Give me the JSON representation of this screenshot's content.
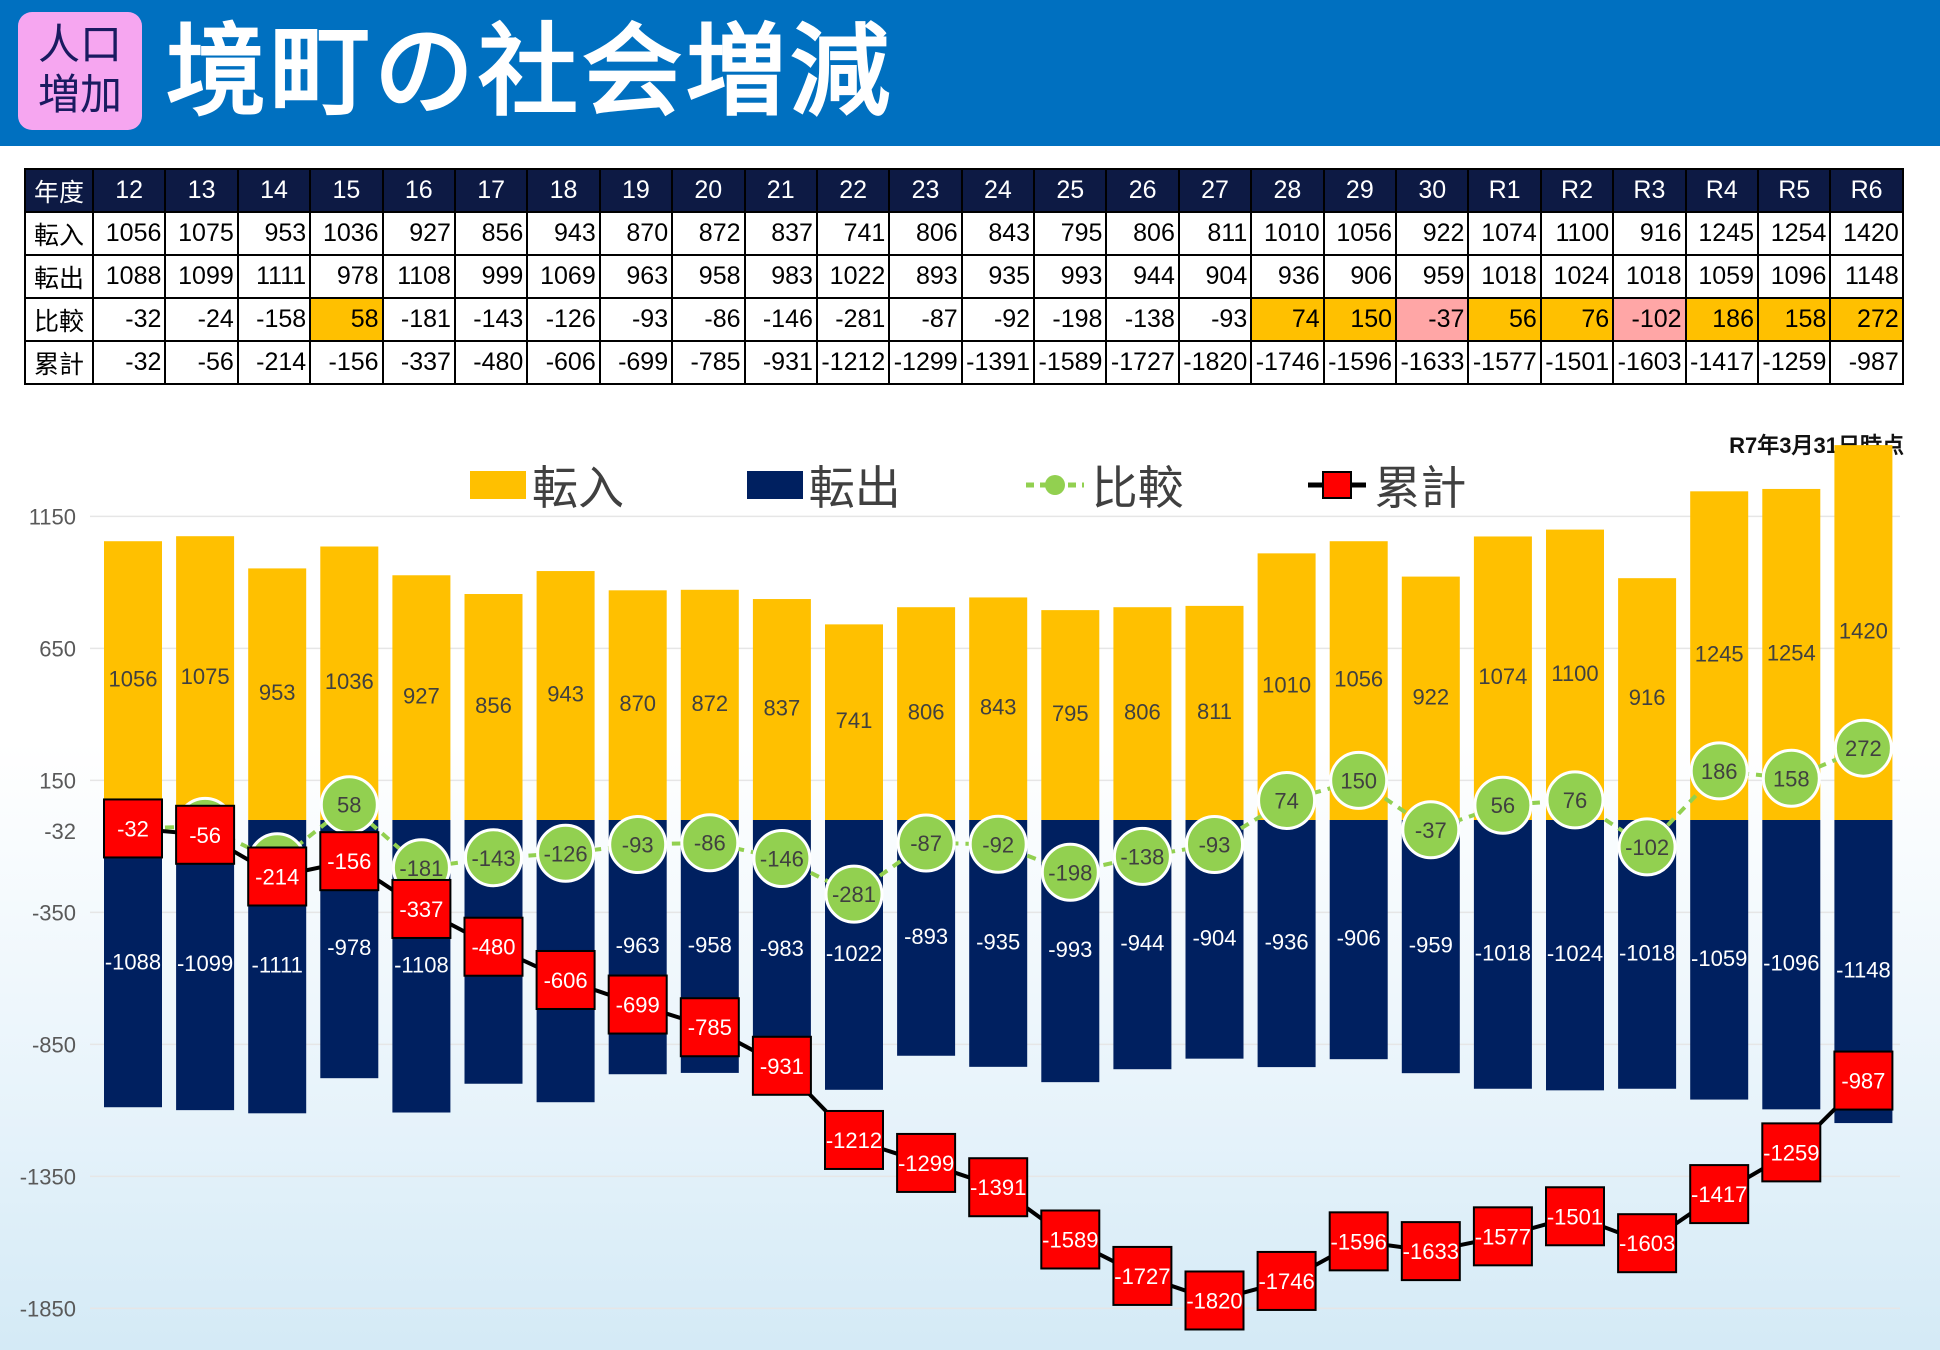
{
  "header": {
    "badge_line1": "人口",
    "badge_line2": "増加",
    "title": "境町の社会増減"
  },
  "table": {
    "row_labels": [
      "年度",
      "転入",
      "転出",
      "比較",
      "累計"
    ],
    "years": [
      "12",
      "13",
      "14",
      "15",
      "16",
      "17",
      "18",
      "19",
      "20",
      "21",
      "22",
      "23",
      "24",
      "25",
      "26",
      "27",
      "28",
      "29",
      "30",
      "R1",
      "R2",
      "R3",
      "R4",
      "R5",
      "R6"
    ],
    "transfer_in": [
      "1056",
      "1075",
      "953",
      "1036",
      "927",
      "856",
      "943",
      "870",
      "872",
      "837",
      "741",
      "806",
      "843",
      "795",
      "806",
      "811",
      "1010",
      "1056",
      "922",
      "1074",
      "1100",
      "916",
      "1245",
      "1254",
      "1420"
    ],
    "transfer_out": [
      "1088",
      "1099",
      "1111",
      "978",
      "1108",
      "999",
      "1069",
      "963",
      "958",
      "983",
      "1022",
      "893",
      "935",
      "993",
      "944",
      "904",
      "936",
      "906",
      "959",
      "1018",
      "1024",
      "1018",
      "1059",
      "1096",
      "1148"
    ],
    "comparison": [
      "-32",
      "-24",
      "-158",
      "58",
      "-181",
      "-143",
      "-126",
      "-93",
      "-86",
      "-146",
      "-281",
      "-87",
      "-92",
      "-198",
      "-138",
      "-93",
      "74",
      "150",
      "-37",
      "56",
      "76",
      "-102",
      "186",
      "158",
      "272"
    ],
    "cumulative": [
      "-32",
      "-56",
      "-214",
      "-156",
      "-337",
      "-480",
      "-606",
      "-699",
      "-785",
      "-931",
      "-1212",
      "-1299",
      "-1391",
      "-1589",
      "-1727",
      "-1820",
      "-1746",
      "-1596",
      "-1633",
      "-1577",
      "-1501",
      "-1603",
      "-1417",
      "-1259",
      "-987"
    ],
    "highlight_yellow_color": "#ffc000",
    "highlight_pink_color": "#ffa6a6",
    "header_row_color": "#0d1a44"
  },
  "note": "R7年3月31日時点",
  "legend": {
    "in": "転入",
    "out": "転出",
    "comparison": "比較",
    "cumulative": "累計"
  },
  "chart_data": {
    "type": "bar",
    "categories": [
      "12",
      "13",
      "14",
      "15",
      "16",
      "17",
      "18",
      "19",
      "20",
      "21",
      "22",
      "23",
      "24",
      "25",
      "26",
      "27",
      "28",
      "29",
      "30",
      "R1",
      "R2",
      "R3",
      "R4",
      "R5",
      "R6"
    ],
    "series": [
      {
        "name": "転入",
        "type": "bar",
        "color": "#ffc000",
        "values": [
          1056,
          1075,
          953,
          1036,
          927,
          856,
          943,
          870,
          872,
          837,
          741,
          806,
          843,
          795,
          806,
          811,
          1010,
          1056,
          922,
          1074,
          1100,
          916,
          1245,
          1254,
          1420
        ]
      },
      {
        "name": "転出",
        "type": "bar",
        "color": "#002060",
        "values": [
          -1088,
          -1099,
          -1111,
          -978,
          -1108,
          -999,
          -1069,
          -963,
          -958,
          -983,
          -1022,
          -893,
          -935,
          -993,
          -944,
          -904,
          -936,
          -906,
          -959,
          -1018,
          -1024,
          -1018,
          -1059,
          -1096,
          -1148
        ]
      },
      {
        "name": "比較",
        "type": "line",
        "color": "#92d050",
        "values": [
          -32,
          -24,
          -158,
          58,
          -181,
          -143,
          -126,
          -93,
          -86,
          -146,
          -281,
          -87,
          -92,
          -198,
          -138,
          -93,
          74,
          150,
          -37,
          56,
          76,
          -102,
          186,
          158,
          272
        ]
      },
      {
        "name": "累計",
        "type": "line",
        "color": "#ff0000",
        "values": [
          -32,
          -56,
          -214,
          -156,
          -337,
          -480,
          -606,
          -699,
          -785,
          -931,
          -1212,
          -1299,
          -1391,
          -1589,
          -1727,
          -1820,
          -1746,
          -1596,
          -1633,
          -1577,
          -1501,
          -1603,
          -1417,
          -1259,
          -987
        ]
      }
    ],
    "yticks": [
      1150,
      650,
      150,
      -32,
      -350,
      -850,
      -1350,
      -1850
    ],
    "ylim": [
      -1850,
      1350
    ],
    "legend": "top"
  }
}
